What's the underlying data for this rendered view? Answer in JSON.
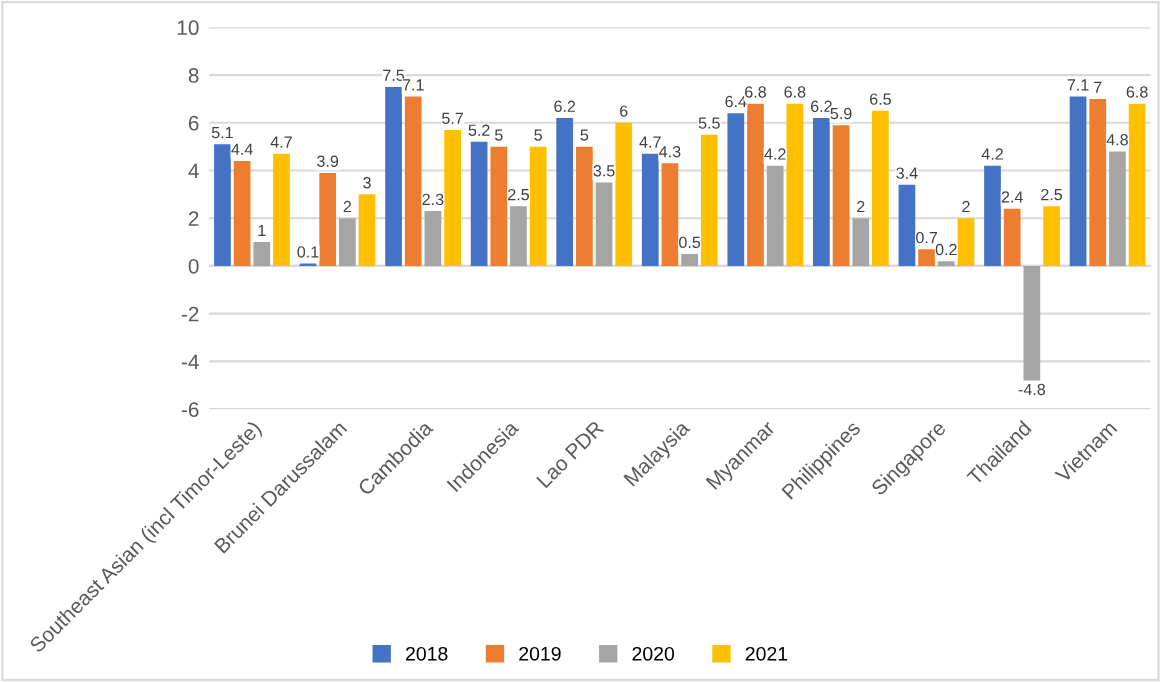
{
  "chart_data": {
    "type": "bar",
    "categories": [
      "Southeast Asian (incl Timor-Leste)",
      "Brunei Darussalam",
      "Cambodia",
      "Indonesia",
      "Lao PDR",
      "Malaysia",
      "Myanmar",
      "Philippines",
      "Singapore",
      "Thailand",
      "Vietnam"
    ],
    "series": [
      {
        "name": "2018",
        "color": "#4472c4",
        "values": [
          5.1,
          0.1,
          7.5,
          5.2,
          6.2,
          4.7,
          6.4,
          6.2,
          3.4,
          4.2,
          7.1
        ]
      },
      {
        "name": "2019",
        "color": "#ed7d31",
        "values": [
          4.4,
          3.9,
          7.1,
          5,
          5,
          4.3,
          6.8,
          5.9,
          0.7,
          2.4,
          7
        ]
      },
      {
        "name": "2020",
        "color": "#a5a5a5",
        "values": [
          1,
          2,
          2.3,
          2.5,
          3.5,
          0.5,
          4.2,
          2,
          0.2,
          -4.8,
          4.8
        ]
      },
      {
        "name": "2021",
        "color": "#ffc000",
        "values": [
          4.7,
          3,
          5.7,
          5,
          6,
          5.5,
          6.8,
          6.5,
          2,
          2.5,
          6.8
        ]
      }
    ],
    "ylim": [
      -6,
      10
    ],
    "yticks": [
      -6,
      -4,
      -2,
      0,
      2,
      4,
      6,
      8,
      10
    ],
    "grid": "y",
    "legend": "bottom",
    "data_labels": true
  }
}
